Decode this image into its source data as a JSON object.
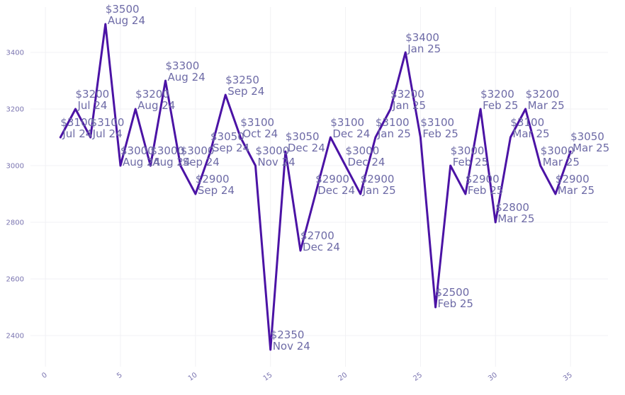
{
  "chart_data": {
    "type": "line",
    "title": "",
    "xlabel": "",
    "ylabel": "",
    "xlim": [
      -1,
      37.5
    ],
    "ylim": [
      2290,
      3560
    ],
    "x_ticks": [
      0,
      5,
      10,
      15,
      20,
      25,
      30,
      35
    ],
    "y_ticks": [
      2400,
      2600,
      2800,
      3000,
      3200,
      3400
    ],
    "grid": true,
    "line_color": "#4b13a5",
    "label_color": "#6d6aa6",
    "series": [
      {
        "x": [
          1,
          2,
          3,
          4,
          5,
          6,
          7,
          8,
          9,
          10,
          11,
          12,
          13,
          14,
          15,
          16,
          17,
          18,
          19,
          20,
          21,
          22,
          23,
          24,
          25,
          26,
          27,
          28,
          29,
          30,
          31,
          32,
          33,
          34,
          35
        ],
        "values": [
          3100,
          3200,
          3100,
          3500,
          3000,
          3200,
          3000,
          3300,
          3000,
          2900,
          3050,
          3250,
          3100,
          3000,
          2350,
          3050,
          2700,
          2900,
          3100,
          3000,
          2900,
          3100,
          3200,
          3400,
          3100,
          2500,
          3000,
          2900,
          3200,
          2800,
          3100,
          3200,
          3000,
          2900,
          3050
        ],
        "labels": [
          [
            "$3100",
            "Jul 24"
          ],
          [
            "$3200",
            "Jul 24"
          ],
          [
            "$3100",
            "Jul 24"
          ],
          [
            "$3500",
            "Aug 24"
          ],
          [
            "$3000",
            "Aug 24"
          ],
          [
            "$3200",
            "Aug 24"
          ],
          [
            "$3000",
            "Aug 24"
          ],
          [
            "$3300",
            "Aug 24"
          ],
          [
            "$3000",
            "Sep 24"
          ],
          [
            "$2900",
            "Sep 24"
          ],
          [
            "$3050",
            "Sep 24"
          ],
          [
            "$3250",
            "Sep 24"
          ],
          [
            "$3100",
            "Oct 24"
          ],
          [
            "$3000",
            "Nov 24"
          ],
          [
            "$2350",
            "Nov 24"
          ],
          [
            "$3050",
            "Dec 24"
          ],
          [
            "$2700",
            "Dec 24"
          ],
          [
            "$2900",
            "Dec 24"
          ],
          [
            "$3100",
            "Dec 24"
          ],
          [
            "$3000",
            "Dec 24"
          ],
          [
            "$2900",
            "Jan 25"
          ],
          [
            "$3100",
            "Jan 25"
          ],
          [
            "$3200",
            "Jan 25"
          ],
          [
            "$3400",
            "Jan 25"
          ],
          [
            "$3100",
            "Feb 25"
          ],
          [
            "$2500",
            "Feb 25"
          ],
          [
            "$3000",
            "Feb 25"
          ],
          [
            "$2900",
            "Feb 25"
          ],
          [
            "$3200",
            "Feb 25"
          ],
          [
            "$2800",
            "Mar 25"
          ],
          [
            "$3100",
            "Mar 25"
          ],
          [
            "$3200",
            "Mar 25"
          ],
          [
            "$3000",
            "Mar 25"
          ],
          [
            "$2900",
            "Mar 25"
          ],
          [
            "$3050",
            "Mar 25"
          ]
        ]
      }
    ]
  }
}
